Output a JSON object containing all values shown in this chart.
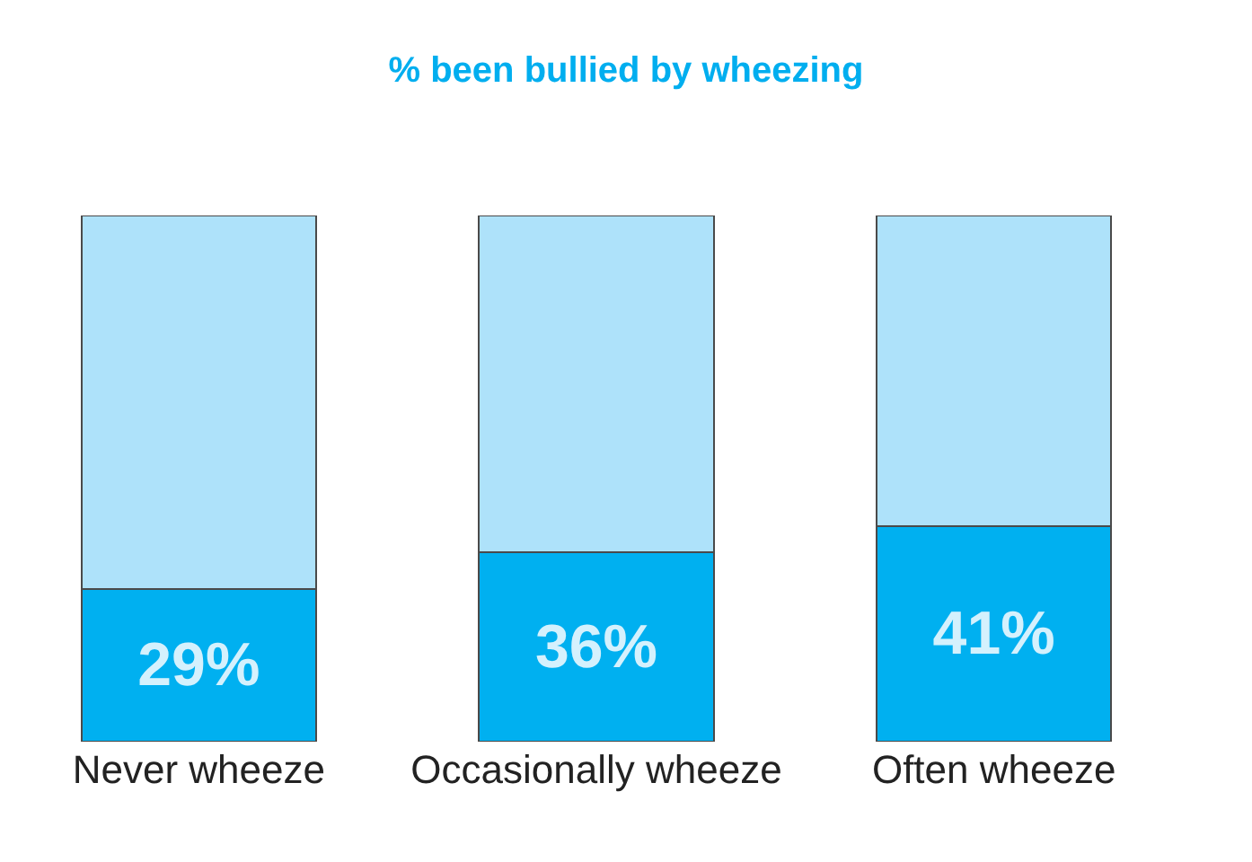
{
  "chart_data": {
    "type": "bar",
    "title": "% been bullied by wheezing",
    "categories": [
      "Never wheeze",
      "Occasionally wheeze",
      "Often wheeze"
    ],
    "stacked": true,
    "ylim": [
      0,
      100
    ],
    "series": [
      {
        "color": "#00b0f0",
        "values": [
          29,
          36,
          41
        ],
        "value_labels": [
          "29%",
          "36%",
          "41%"
        ]
      },
      {
        "color": "#aee2fa",
        "values": [
          71,
          64,
          59
        ]
      }
    ]
  }
}
